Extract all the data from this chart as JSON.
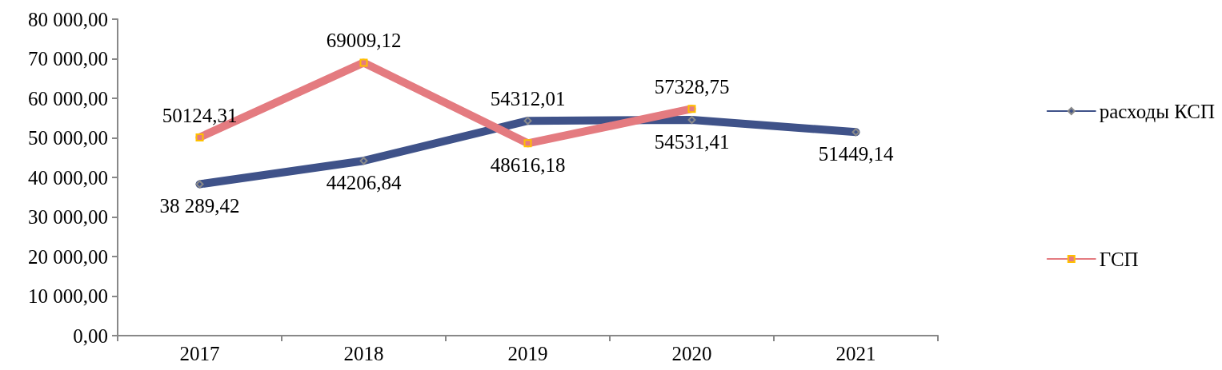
{
  "chart_data": {
    "type": "line",
    "categories": [
      "2017",
      "2018",
      "2019",
      "2020",
      "2021"
    ],
    "series": [
      {
        "name": "расходы КСП",
        "color": "#3f5289",
        "values": [
          38289.42,
          44206.84,
          54312.01,
          54531.41,
          51449.14
        ],
        "value_labels": [
          "38 289,42",
          "44206,84",
          "54312,01",
          "54531,41",
          "51449,14"
        ],
        "marker": "diamond"
      },
      {
        "name": "ГСП",
        "color": "#e47b80",
        "values": [
          50124.31,
          69009.12,
          48616.18,
          57328.75,
          null
        ],
        "value_labels": [
          "50124,31",
          "69009,12",
          "48616,18",
          "57328,75",
          null
        ],
        "marker": "square"
      }
    ],
    "ylim": [
      0,
      80000
    ],
    "yticks": [
      {
        "value": 0,
        "label": "0,00"
      },
      {
        "value": 10000,
        "label": "10 000,00"
      },
      {
        "value": 20000,
        "label": "20 000,00"
      },
      {
        "value": 30000,
        "label": "30 000,00"
      },
      {
        "value": 40000,
        "label": "40 000,00"
      },
      {
        "value": 50000,
        "label": "50 000,00"
      },
      {
        "value": 60000,
        "label": "60 000,00"
      },
      {
        "value": 70000,
        "label": "70 000,00"
      },
      {
        "value": 80000,
        "label": "80 000,00"
      }
    ],
    "legend": "right",
    "line_style": "solid"
  }
}
